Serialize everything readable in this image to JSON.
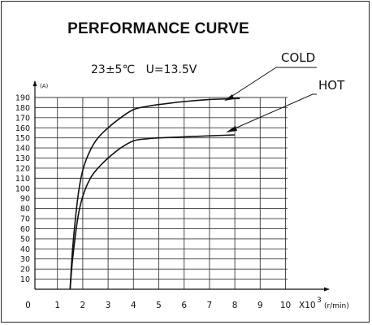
{
  "chart_data": {
    "type": "line",
    "title": "PERFORMANCE CURVE",
    "conditions": [
      "23±5℃",
      "U=13.5V"
    ],
    "ylabel": "(A)",
    "xlabel": "(r/min)",
    "x_multiplier": "X10",
    "x_multiplier_exp": "3",
    "xlim": [
      0,
      10
    ],
    "ylim": [
      0,
      190
    ],
    "xticks": [
      "0",
      "1",
      "2",
      "3",
      "4",
      "5",
      "6",
      "7",
      "8",
      "9",
      "10"
    ],
    "yticks": [
      "10",
      "20",
      "30",
      "40",
      "50",
      "60",
      "70",
      "80",
      "90",
      "100",
      "110",
      "120",
      "130",
      "140",
      "150",
      "160",
      "170",
      "180",
      "190"
    ],
    "grid": true,
    "series": [
      {
        "name": "COLD",
        "x": [
          1.5,
          1.6,
          1.8,
          2.0,
          2.3,
          2.6,
          3.0,
          3.5,
          4.0,
          4.5,
          5.0,
          6.0,
          7.0,
          8.2
        ],
        "y": [
          0,
          40,
          90,
          118,
          138,
          150,
          160,
          170,
          178,
          181,
          183,
          186,
          188,
          189
        ]
      },
      {
        "name": "HOT",
        "x": [
          1.5,
          1.6,
          1.8,
          2.0,
          2.3,
          2.6,
          3.0,
          3.5,
          4.0,
          4.5,
          5.0,
          6.0,
          7.0,
          8.0
        ],
        "y": [
          0,
          30,
          70,
          92,
          110,
          120,
          130,
          140,
          147,
          149,
          150,
          151,
          152,
          153
        ]
      }
    ]
  }
}
